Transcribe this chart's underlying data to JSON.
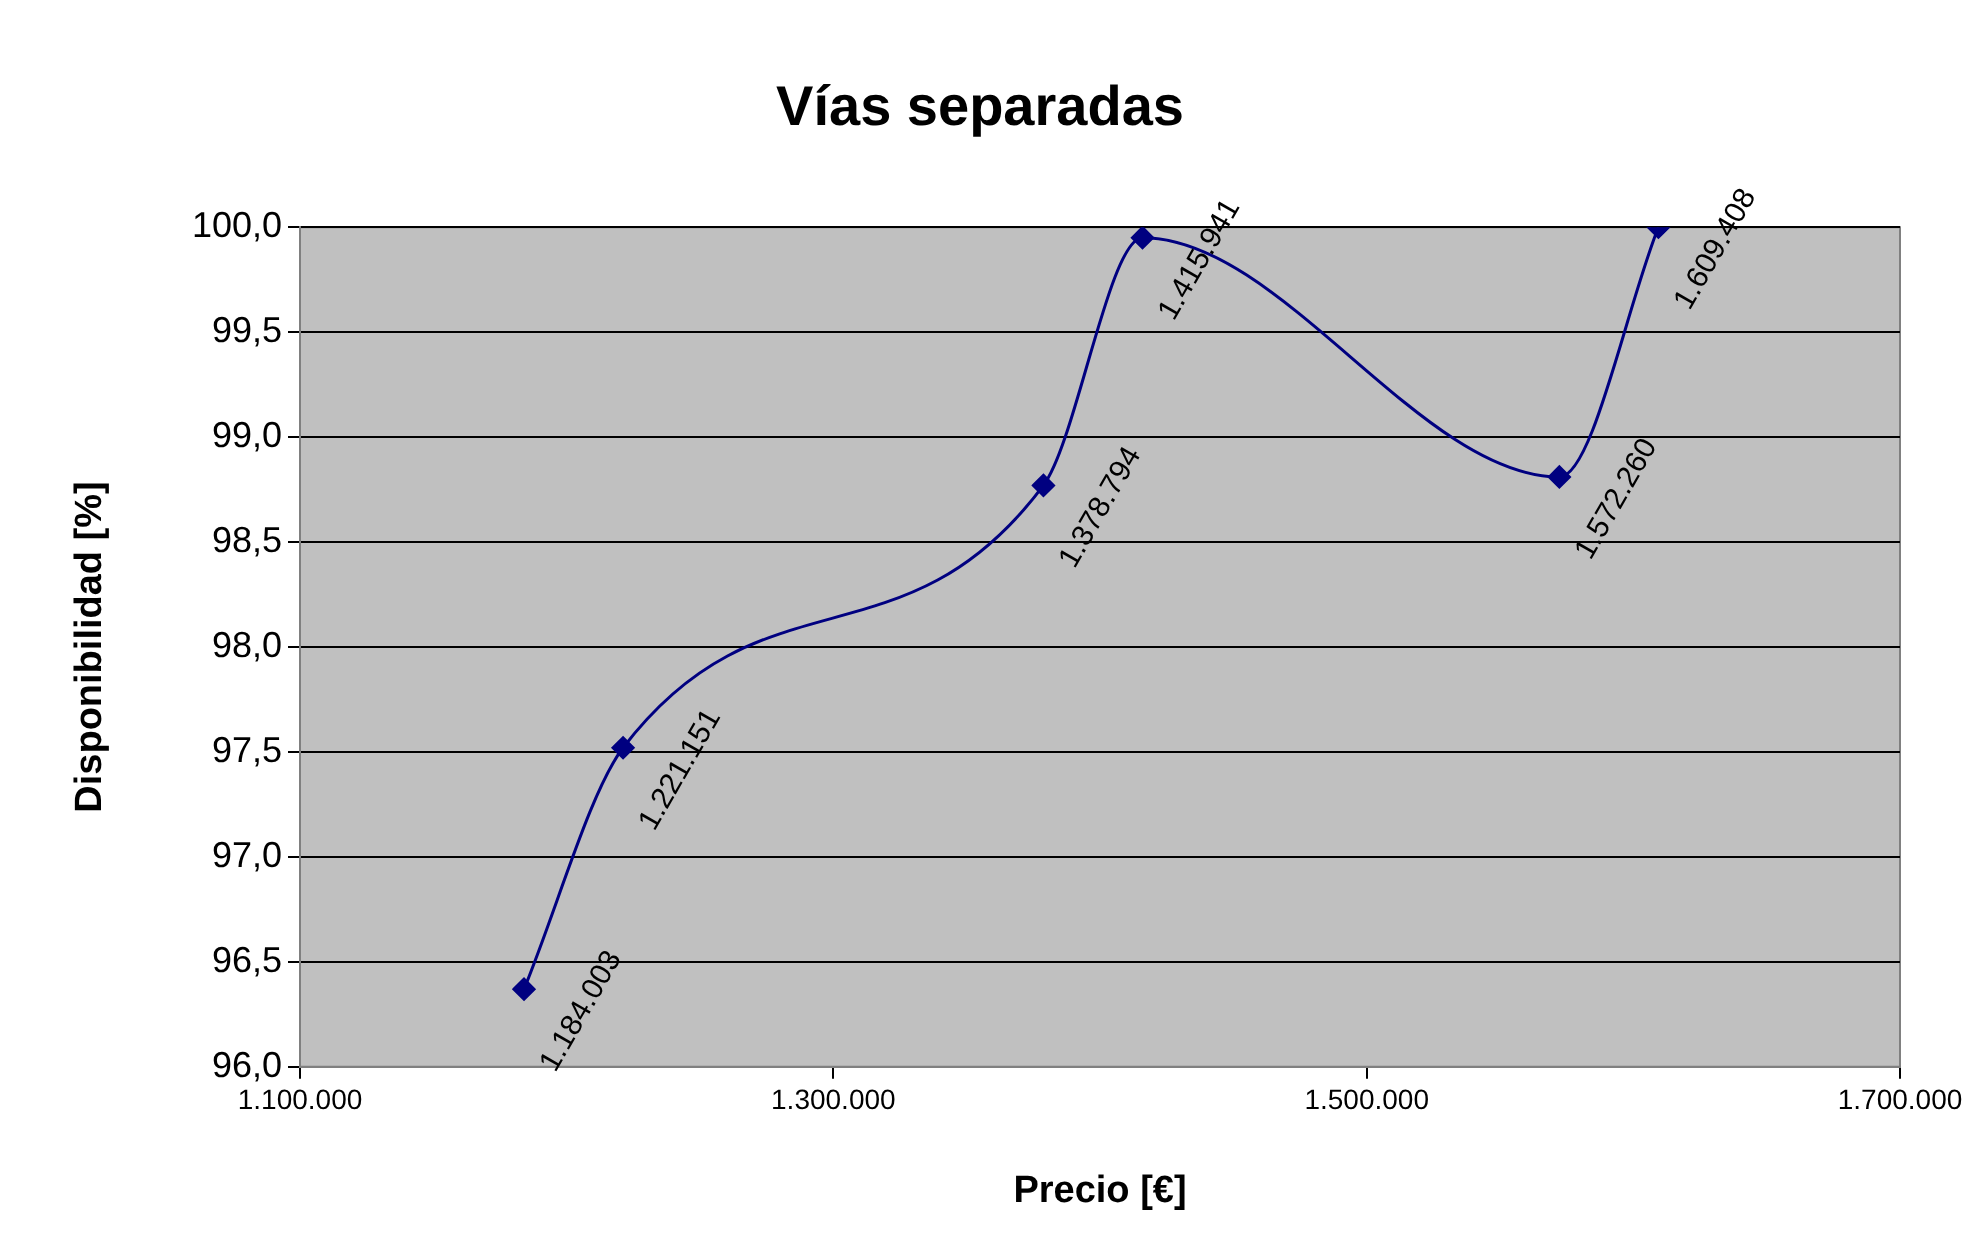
{
  "chart_data": {
    "type": "line",
    "title": "Vías separadas",
    "xlabel": "Precio [€]",
    "ylabel": "Disponibilidad [%]",
    "x": [
      1184003,
      1221151,
      1378794,
      1415941,
      1572260,
      1609408
    ],
    "series": [
      {
        "color": "#000080",
        "values": [
          96.37,
          97.52,
          98.77,
          99.95,
          98.81,
          100.0
        ]
      }
    ],
    "annotations": [
      {
        "text": "1.184.003",
        "x": 1184003,
        "y": 96.37
      },
      {
        "text": "1.221.151",
        "x": 1221151,
        "y": 97.52
      },
      {
        "text": "1.378.794",
        "x": 1378794,
        "y": 98.77
      },
      {
        "text": "1.415.941",
        "x": 1415941,
        "y": 99.95
      },
      {
        "text": "1.572.260",
        "x": 1572260,
        "y": 98.81
      },
      {
        "text": "1.609.408",
        "x": 1609408,
        "y": 100.0
      }
    ],
    "xlim": [
      1100000,
      1700000
    ],
    "xticks": [
      {
        "value": 1100000,
        "label": "1.100.000"
      },
      {
        "value": 1300000,
        "label": "1.300.000"
      },
      {
        "value": 1500000,
        "label": "1.500.000"
      },
      {
        "value": 1700000,
        "label": "1.700.000"
      }
    ],
    "ylim": [
      96,
      100
    ],
    "yticks": [
      {
        "value": 96,
        "label": "96,0"
      },
      {
        "value": 96.5,
        "label": "96,5"
      },
      {
        "value": 97,
        "label": "97,0"
      },
      {
        "value": 97.5,
        "label": "97,5"
      },
      {
        "value": 98,
        "label": "98,0"
      },
      {
        "value": 98.5,
        "label": "98,5"
      },
      {
        "value": 99,
        "label": "99,0"
      },
      {
        "value": 99.5,
        "label": "99,5"
      },
      {
        "value": 100,
        "label": "100,0"
      }
    ],
    "grid": "y",
    "marker": "diamond",
    "line_style": "solid",
    "legend": false
  }
}
